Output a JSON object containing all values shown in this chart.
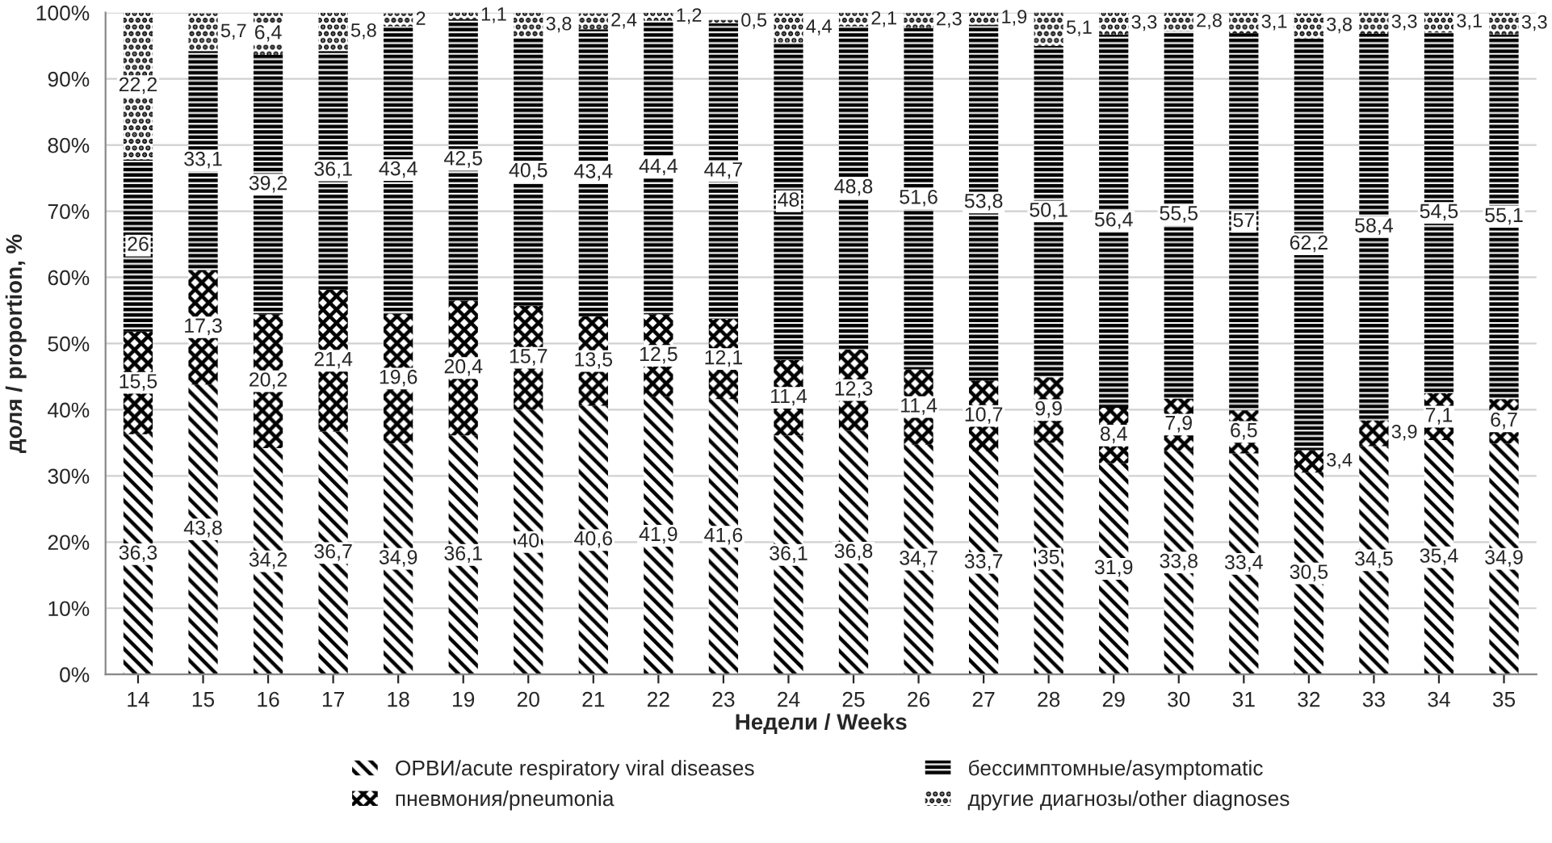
{
  "chart_data": {
    "type": "bar",
    "stacked": true,
    "xlabel": "Недели / Weeks",
    "ylabel": "доля / proportion, %",
    "categories": [
      "14",
      "15",
      "16",
      "17",
      "18",
      "19",
      "20",
      "21",
      "22",
      "23",
      "24",
      "25",
      "26",
      "27",
      "28",
      "29",
      "30",
      "31",
      "32",
      "33",
      "34",
      "35"
    ],
    "series": [
      {
        "name": "ОРВИ/acute respiratory viral diseases",
        "color": "#000000",
        "values": [
          36.3,
          43.8,
          34.2,
          36.7,
          34.9,
          36.1,
          40,
          40.6,
          41.9,
          41.6,
          36.1,
          36.8,
          34.7,
          33.7,
          35,
          31.9,
          33.8,
          33.4,
          30.5,
          34.5,
          35.4,
          34.9
        ],
        "value_labels": [
          "36,3",
          "43,8",
          "34,2",
          "36,7",
          "34,9",
          "36,1",
          "40",
          "40,6",
          "41,9",
          "41,6",
          "36,1",
          "36,8",
          "34,7",
          "33,7",
          "35",
          "31,9",
          "33,8",
          "33,4",
          "30,5",
          "34,5",
          "35,4",
          "34,9"
        ]
      },
      {
        "name": "пневмония/pneumonia",
        "color": "#000000",
        "values": [
          15.5,
          17.3,
          20.2,
          21.4,
          19.6,
          20.4,
          15.7,
          13.5,
          12.5,
          12.1,
          11.4,
          12.3,
          11.4,
          10.7,
          9.9,
          8.4,
          7.9,
          6.5,
          3.4,
          3.9,
          7.1,
          6.7
        ],
        "value_labels": [
          "15,5",
          "17,3",
          "20,2",
          "21,4",
          "19,6",
          "20,4",
          "15,7",
          "13,5",
          "12,5",
          "12,1",
          "11,4",
          "12,3",
          "11,4",
          "10,7",
          "9,9",
          "8,4",
          "7,9",
          "6,5",
          "3,4",
          "3,9",
          "7,1",
          "6,7"
        ]
      },
      {
        "name": "бессимптомные/asymptomatic",
        "color": "#000000",
        "values": [
          26,
          33.1,
          39.2,
          36.1,
          43.4,
          42.5,
          40.5,
          43.4,
          44.4,
          44.7,
          48,
          48.8,
          51.6,
          53.8,
          50.1,
          56.4,
          55.5,
          57,
          62.2,
          58.4,
          54.5,
          55.1
        ],
        "value_labels": [
          "26",
          "33,1",
          "39,2",
          "36,1",
          "43,4",
          "42,5",
          "40,5",
          "43,4",
          "44,4",
          "44,7",
          "48",
          "48,8",
          "51,6",
          "53,8",
          "50,1",
          "56,4",
          "55,5",
          "57",
          "62,2",
          "58,4",
          "54,5",
          "55,1"
        ]
      },
      {
        "name": "другие диагнозы/other diagnoses",
        "color": "#000000",
        "values": [
          22.2,
          5.7,
          6.4,
          5.8,
          2,
          1.1,
          3.8,
          2.4,
          1.2,
          0.5,
          4.4,
          2.1,
          2.3,
          1.9,
          5.1,
          3.3,
          2.8,
          3.1,
          3.8,
          3.3,
          3.1,
          3.3
        ],
        "value_labels": [
          "22,2",
          "5,7",
          "6,4",
          "5,8",
          "2",
          "1,1",
          "3,8",
          "2,4",
          "1,2",
          "0,5",
          "4,4",
          "2,1",
          "2,3",
          "1,9",
          "5,1",
          "3,3",
          "2,8",
          "3,1",
          "3,8",
          "3,3",
          "3,1",
          "3,3"
        ]
      }
    ],
    "ylim": [
      0,
      100
    ],
    "yticks": [
      {
        "value": 0,
        "label": "0%"
      },
      {
        "value": 10,
        "label": "10%"
      },
      {
        "value": 20,
        "label": "20%"
      },
      {
        "value": 30,
        "label": "30%"
      },
      {
        "value": 40,
        "label": "40%"
      },
      {
        "value": 50,
        "label": "50%"
      },
      {
        "value": 60,
        "label": "60%"
      },
      {
        "value": 70,
        "label": "70%"
      },
      {
        "value": 80,
        "label": "80%"
      },
      {
        "value": 90,
        "label": "90%"
      },
      {
        "value": 100,
        "label": "100%"
      }
    ],
    "grid": "y",
    "legend": "bottom"
  }
}
